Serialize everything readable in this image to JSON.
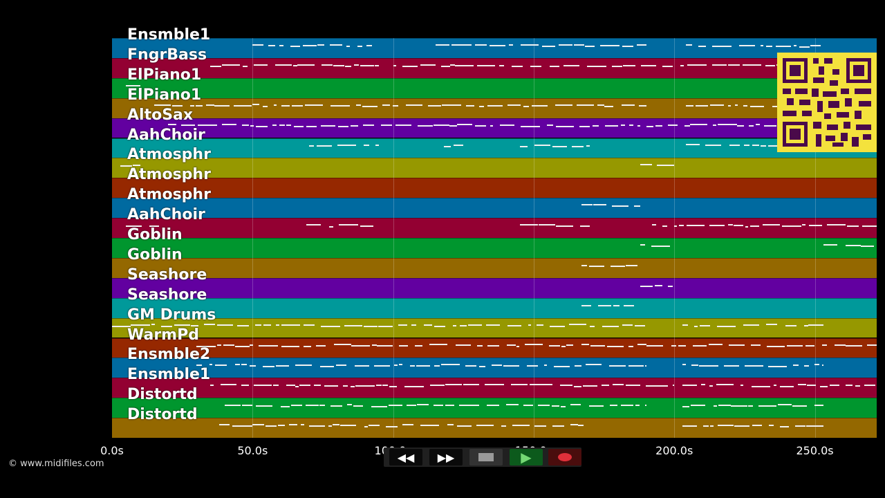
{
  "tracks": [
    {
      "name": "Ensmble1",
      "color": "#006aa0"
    },
    {
      "name": "FngrBass",
      "color": "#930032"
    },
    {
      "name": "ElPiano1",
      "color": "#00962e"
    },
    {
      "name": "ElPiano1",
      "color": "#946800"
    },
    {
      "name": "AltoSax",
      "color": "#6200a0"
    },
    {
      "name": "AahChoir",
      "color": "#00999a"
    },
    {
      "name": "Atmosphr",
      "color": "#969800"
    },
    {
      "name": "Atmosphr",
      "color": "#962800"
    },
    {
      "name": "Atmosphr",
      "color": "#006aa0"
    },
    {
      "name": "AahChoir",
      "color": "#930032"
    },
    {
      "name": "Goblin",
      "color": "#00962e"
    },
    {
      "name": "Goblin",
      "color": "#946800"
    },
    {
      "name": "Seashore",
      "color": "#6200a0"
    },
    {
      "name": "Seashore",
      "color": "#00999a"
    },
    {
      "name": "GM Drums",
      "color": "#969800"
    },
    {
      "name": "WarmPd",
      "color": "#962800"
    },
    {
      "name": "Ensmble2",
      "color": "#006aa0"
    },
    {
      "name": "Ensmble1",
      "color": "#930032"
    },
    {
      "name": "Distortd",
      "color": "#00962e"
    },
    {
      "name": "Distortd",
      "color": "#946800"
    }
  ],
  "timeline": {
    "max_seconds": 272,
    "ticks": [
      {
        "label": "0.0s",
        "value": 0
      },
      {
        "label": "50.0s",
        "value": 50
      },
      {
        "label": "100.0s",
        "value": 100
      },
      {
        "label": "150.0s",
        "value": 150
      },
      {
        "label": "200.0s",
        "value": 200
      },
      {
        "label": "250.0s",
        "value": 250
      }
    ]
  },
  "copyright": "© www.midifiles.com",
  "transport": {
    "rewind_icon": "rewind-icon",
    "forward_icon": "fast-forward-icon",
    "stop_icon": "stop-icon",
    "play_icon": "play-icon",
    "record_icon": "record-icon"
  }
}
